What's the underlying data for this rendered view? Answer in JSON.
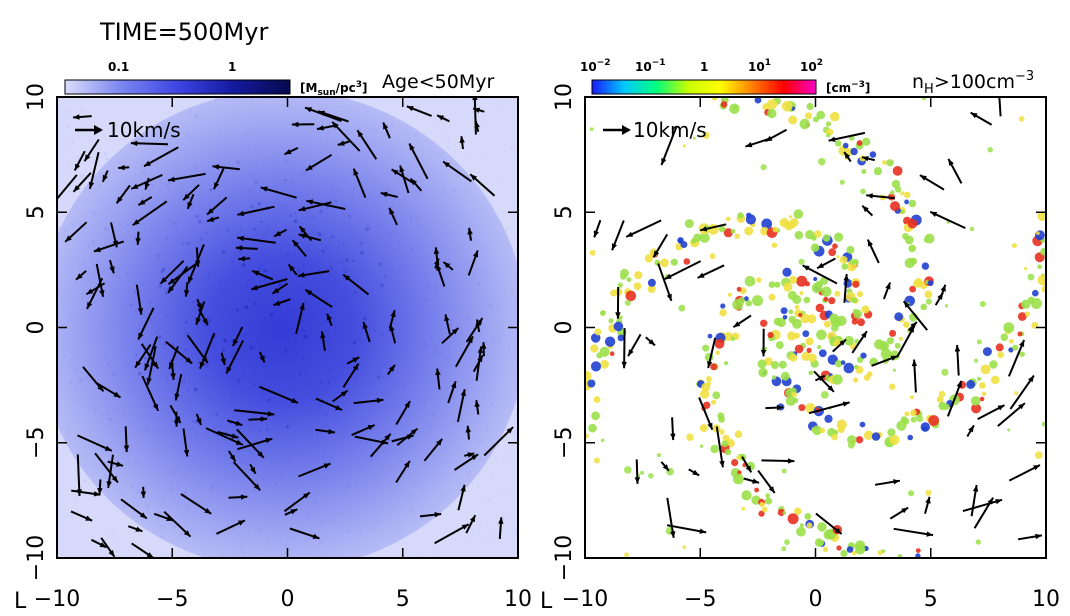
{
  "header": {
    "time_label": "TIME=500Myr"
  },
  "chart_data": [
    {
      "type": "heatmap",
      "quantity": "stellar surface density with velocity vectors",
      "title": "",
      "xlabel": "",
      "ylabel": "",
      "xlim": [
        -10,
        10
      ],
      "ylim": [
        -10,
        10
      ],
      "x_ticks": [
        "−10",
        "−5",
        "0",
        "5",
        "10"
      ],
      "y_ticks": [
        "−10",
        "−5",
        "0",
        "5",
        "10"
      ],
      "xaxis_label": "L",
      "colorbar": {
        "ticks": [
          "0.1",
          "1"
        ],
        "unit": "[M",
        "unit_sub": "sun",
        "unit_tail": "/pc",
        "unit_sup": "3",
        "unit_close": "]",
        "colors": [
          "#d9dcfa",
          "#7b86f0",
          "#3d45e2",
          "#141a9e",
          "#06094e"
        ]
      },
      "annotation": "Age<50Myr",
      "velocity_key": "10km/s",
      "colors": {
        "light": "#d4d7fa",
        "mid": "#6f7aec",
        "core": "#2d35d6",
        "arrow": "#000000"
      }
    },
    {
      "type": "heatmap",
      "quantity": "gas density with velocity vectors",
      "title": "",
      "xlabel": "",
      "ylabel": "",
      "xlim": [
        -10,
        10
      ],
      "ylim": [
        -10,
        10
      ],
      "x_ticks": [
        "−10",
        "−5",
        "0",
        "5",
        "10"
      ],
      "y_ticks": [
        "−10",
        "−5",
        "0",
        "5",
        "10"
      ],
      "xaxis_label": "L",
      "colorbar": {
        "ticks": [
          {
            "base": "10",
            "exp": "−2"
          },
          {
            "base": "10",
            "exp": "−1"
          },
          {
            "base": "1",
            "exp": ""
          },
          {
            "base": "10",
            "exp": "1"
          },
          {
            "base": "10",
            "exp": "2"
          }
        ],
        "unit": "[cm",
        "unit_sup": "−3",
        "unit_close": "]",
        "colors": [
          "#1a1aff",
          "#00c8ff",
          "#00ff80",
          "#c8ff00",
          "#ffff00",
          "#ff8000",
          "#ff0000",
          "#ff00c8"
        ]
      },
      "annotation": {
        "text": "n",
        "sub": "H",
        "tail": ">100cm",
        "sup": "−3"
      },
      "velocity_key": "10km/s",
      "colors": {
        "green": "#9be04a",
        "yellow": "#f0e040",
        "red": "#e83020",
        "blue": "#2040d0",
        "arrow": "#000000"
      }
    }
  ]
}
